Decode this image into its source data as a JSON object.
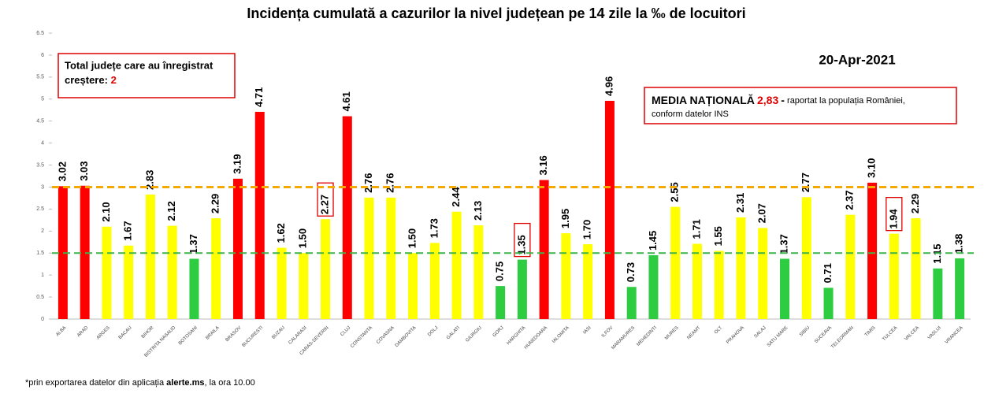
{
  "chart_data": {
    "type": "bar",
    "title": "Incidența cumulată a cazurilor la nivel județean pe 14 zile la ‰ de locuitori",
    "categories": [
      "ALBA",
      "ARAD",
      "ARGES",
      "BACAU",
      "BIHOR",
      "BISTRITA NASAUD",
      "BOTOSANI",
      "BRAILA",
      "BRASOV",
      "BUCURESTI",
      "BUZAU",
      "CALARASI",
      "CARAS-SEVERIN",
      "CLUJ",
      "CONSTANTA",
      "COVASNA",
      "DAMBOVITA",
      "DOLJ",
      "GALATI",
      "GIURGIU",
      "GORJ",
      "HARGHITA",
      "HUNEDOARA",
      "IALOMITA",
      "IASI",
      "ILFOV",
      "MARAMURES",
      "MEHEDINTI",
      "MURES",
      "NEAMT",
      "OLT",
      "PRAHOVA",
      "SALAJ",
      "SATU MARE",
      "SIBIU",
      "SUCEAVA",
      "TELEORMAN",
      "TIMIS",
      "TULCEA",
      "VALCEA",
      "VASLUI",
      "VRANCEA"
    ],
    "values": [
      3.02,
      3.03,
      2.1,
      1.67,
      2.83,
      2.12,
      1.37,
      2.29,
      3.19,
      4.71,
      1.62,
      1.5,
      2.27,
      4.61,
      2.76,
      2.76,
      1.5,
      1.73,
      2.44,
      2.13,
      0.75,
      1.35,
      3.16,
      1.95,
      1.7,
      4.96,
      0.73,
      1.45,
      2.55,
      1.71,
      1.55,
      2.31,
      2.07,
      1.37,
      2.77,
      0.71,
      2.37,
      3.1,
      1.94,
      2.29,
      1.15,
      1.38
    ],
    "value_labels": [
      "3.02",
      "3.03",
      "2.10",
      "1.67",
      "2.83",
      "2.12",
      "1.37",
      "2.29",
      "3.19",
      "4.71",
      "1.62",
      "1.50",
      "2.27",
      "4.61",
      "2.76",
      "2.76",
      "1.50",
      "1.73",
      "2.44",
      "2.13",
      "0.75",
      "1.35",
      "3.16",
      "1.95",
      "1.70",
      "4.96",
      "0.73",
      "1.45",
      "2.55",
      "1.71",
      "1.55",
      "2.31",
      "2.07",
      "1.37",
      "2.77",
      "0.71",
      "2.37",
      "3.10",
      "1.94",
      "2.29",
      "1.15",
      "1.38"
    ],
    "colors": [
      "#ff0000",
      "#ff0000",
      "#ffff00",
      "#ffff00",
      "#ffff00",
      "#ffff00",
      "#2ecc40",
      "#ffff00",
      "#ff0000",
      "#ff0000",
      "#ffff00",
      "#ffff00",
      "#ffff00",
      "#ff0000",
      "#ffff00",
      "#ffff00",
      "#ffff00",
      "#ffff00",
      "#ffff00",
      "#ffff00",
      "#2ecc40",
      "#2ecc40",
      "#ff0000",
      "#ffff00",
      "#ffff00",
      "#ff0000",
      "#2ecc40",
      "#2ecc40",
      "#ffff00",
      "#ffff00",
      "#ffff00",
      "#ffff00",
      "#ffff00",
      "#2ecc40",
      "#ffff00",
      "#2ecc40",
      "#ffff00",
      "#ff0000",
      "#ffff00",
      "#ffff00",
      "#2ecc40",
      "#2ecc40"
    ],
    "highlighted": [
      12,
      21,
      38
    ],
    "ylim": [
      0,
      6.5
    ],
    "yticks": [
      0,
      0.5,
      1,
      1.5,
      2,
      2.5,
      3,
      3.5,
      4,
      4.5,
      5,
      5.5,
      6,
      6.5
    ],
    "reference_lines": [
      {
        "value": 3,
        "color": "#f5a800"
      },
      {
        "value": 1.5,
        "color": "#3cb44b"
      }
    ],
    "annotations": {
      "increase_box": {
        "line1": "Total județe care au înregistrat",
        "line2": "creștere:",
        "count": "2"
      },
      "date": "20-Apr-2021",
      "national": {
        "label": "MEDIA NAȚIONALĂ",
        "value": "2,83",
        "dash": "-",
        "text1": "raportat la populația României,",
        "text2": "conform datelor INS"
      },
      "footnote": {
        "pre": "*prin exportarea datelor din aplicația",
        "bold": "alerte.ms",
        "post": ", la ora 10.00"
      }
    }
  }
}
